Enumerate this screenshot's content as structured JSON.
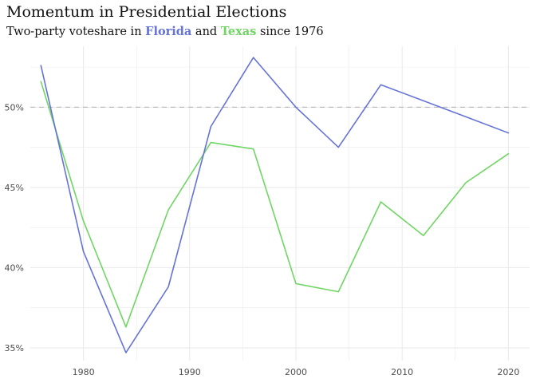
{
  "title": "Momentum in Presidential Elections",
  "subtitle": {
    "prefix": "Two-party voteshare in ",
    "florida": "Florida",
    "middle": " and ",
    "texas": "Texas",
    "suffix": " since 1976"
  },
  "colors": {
    "florida": "#6673d6",
    "texas": "#6fd663",
    "reference_line": "#bdbdbd",
    "grid": "#ebebeb"
  },
  "chart_data": {
    "type": "line",
    "title": "Momentum in Presidential Elections",
    "subtitle": "Two-party voteshare in Florida and Texas since 1976",
    "xlabel": "",
    "ylabel": "",
    "x": [
      1976,
      1980,
      1984,
      1988,
      1992,
      1996,
      2000,
      2004,
      2008,
      2012,
      2016,
      2020
    ],
    "series": [
      {
        "name": "Florida",
        "values": [
          52.6,
          41.0,
          34.7,
          38.8,
          48.8,
          53.1,
          50.0,
          47.5,
          51.4,
          50.4,
          49.4,
          48.4
        ]
      },
      {
        "name": "Texas",
        "values": [
          51.6,
          42.9,
          36.3,
          43.6,
          47.8,
          47.4,
          39.0,
          38.5,
          44.1,
          42.0,
          45.3,
          47.1
        ]
      }
    ],
    "xlim": [
      1975,
      2022
    ],
    "ylim": [
      34.2,
      53.8
    ],
    "xticks": [
      1980,
      1990,
      2000,
      2010,
      2020
    ],
    "yticks": [
      35,
      40,
      45,
      50
    ],
    "ytick_labels": [
      "35%",
      "40%",
      "45%",
      "50%"
    ],
    "reference_line": 50,
    "grid": true,
    "legend": "none"
  }
}
